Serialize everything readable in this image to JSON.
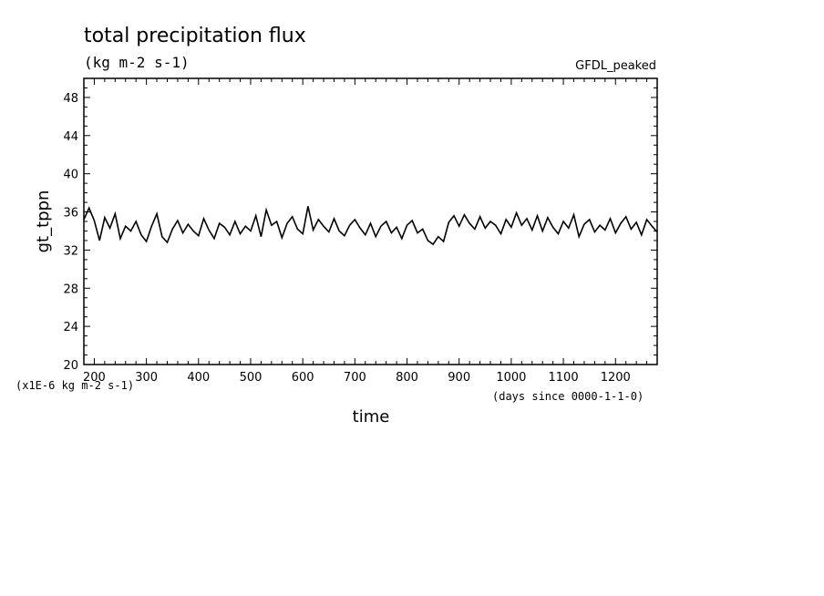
{
  "chart_data": {
    "type": "line",
    "title": "total precipitation flux",
    "subtitle": "(kg m-2 s-1)",
    "model_label": "GFDL_peaked",
    "xlabel": "time",
    "ylabel": "gt_tppn",
    "x_units_note": "(days since 0000-1-1-0)",
    "y_scale_note": "(x1E-6 kg m-2 s-1)",
    "xlim": [
      180,
      1280
    ],
    "ylim": [
      20,
      50
    ],
    "x_ticks": [
      200,
      300,
      400,
      500,
      600,
      700,
      800,
      900,
      1000,
      1100,
      1200
    ],
    "x_tick_labels": [
      "200",
      "300",
      "400",
      "500",
      "600",
      "700",
      "800",
      "900",
      "1000",
      "1100",
      "1200"
    ],
    "y_ticks": [
      20,
      24,
      28,
      32,
      36,
      40,
      44,
      48
    ],
    "y_tick_labels": [
      "20",
      "24",
      "28",
      "32",
      "36",
      "40",
      "44",
      "48"
    ],
    "grid": false,
    "line_color": "#000000",
    "series": [
      {
        "x": [
          180,
          190,
          200,
          210,
          220,
          230,
          240,
          250,
          260,
          270,
          280,
          290,
          300,
          310,
          320,
          330,
          340,
          350,
          360,
          370,
          380,
          390,
          400,
          410,
          420,
          430,
          440,
          450,
          460,
          470,
          480,
          490,
          500,
          510,
          520,
          530,
          540,
          550,
          560,
          570,
          580,
          590,
          600,
          610,
          620,
          630,
          640,
          650,
          660,
          670,
          680,
          690,
          700,
          710,
          720,
          730,
          740,
          750,
          760,
          770,
          780,
          790,
          800,
          810,
          820,
          830,
          840,
          850,
          860,
          870,
          880,
          890,
          900,
          910,
          920,
          930,
          940,
          950,
          960,
          970,
          980,
          990,
          1000,
          1010,
          1020,
          1030,
          1040,
          1050,
          1060,
          1070,
          1080,
          1090,
          1100,
          1110,
          1120,
          1130,
          1140,
          1150,
          1160,
          1170,
          1180,
          1190,
          1200,
          1210,
          1220,
          1230,
          1240,
          1250,
          1260,
          1270,
          1280
        ],
        "values": [
          35.2,
          36.4,
          35.1,
          33.0,
          35.4,
          34.3,
          35.8,
          33.2,
          34.5,
          34.0,
          35.0,
          33.6,
          32.9,
          34.5,
          35.8,
          33.4,
          32.8,
          34.2,
          35.1,
          33.8,
          34.7,
          34.0,
          33.5,
          35.3,
          34.1,
          33.2,
          34.8,
          34.4,
          33.6,
          35.0,
          33.7,
          34.5,
          34.0,
          35.6,
          33.4,
          36.2,
          34.6,
          35.0,
          33.3,
          34.8,
          35.5,
          34.2,
          33.7,
          36.6,
          34.1,
          35.2,
          34.5,
          33.9,
          35.3,
          34.0,
          33.5,
          34.6,
          35.2,
          34.3,
          33.6,
          34.8,
          33.4,
          34.5,
          35.0,
          33.8,
          34.4,
          33.2,
          34.6,
          35.1,
          33.8,
          34.2,
          33.0,
          32.6,
          33.4,
          32.9,
          34.9,
          35.6,
          34.5,
          35.7,
          34.8,
          34.2,
          35.5,
          34.3,
          35.0,
          34.6,
          33.7,
          35.2,
          34.4,
          35.9,
          34.6,
          35.3,
          34.1,
          35.6,
          34.0,
          35.4,
          34.4,
          33.7,
          35.0,
          34.3,
          35.7,
          33.4,
          34.7,
          35.2,
          33.9,
          34.6,
          34.1,
          35.3,
          33.8,
          34.8,
          35.5,
          34.2,
          34.9,
          33.6,
          35.2,
          34.5,
          33.9
        ]
      }
    ]
  }
}
